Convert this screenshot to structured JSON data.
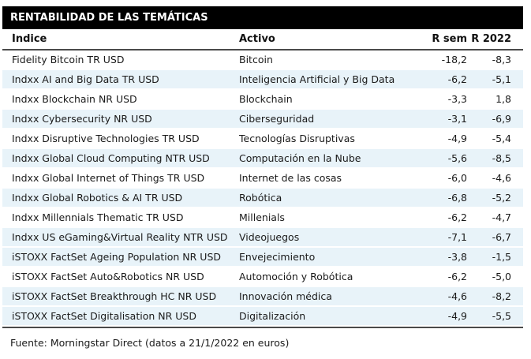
{
  "table": {
    "title": "RENTABILIDAD DE LAS TEMÁTICAS",
    "columns": {
      "indice": "Índice",
      "activo": "Activo",
      "r_sem": "R sem",
      "r_2022": "R 2022"
    },
    "rows": [
      {
        "indice": "Fidelity Bitcoin TR USD",
        "activo": "Bitcoin",
        "r_sem": "-18,2",
        "r_2022": "-8,3",
        "shaded": false
      },
      {
        "indice": "Indxx AI and Big Data TR USD",
        "activo": "Inteligencia Artificial y Big Data",
        "r_sem": "-6,2",
        "r_2022": "-5,1",
        "shaded": true
      },
      {
        "indice": "Indxx Blockchain NR USD",
        "activo": "Blockchain",
        "r_sem": "-3,3",
        "r_2022": "1,8",
        "shaded": false
      },
      {
        "indice": "Indxx Cybersecurity NR USD",
        "activo": "Ciberseguridad",
        "r_sem": "-3,1",
        "r_2022": "-6,9",
        "shaded": true
      },
      {
        "indice": "Indxx Disruptive Technologies TR USD",
        "activo": "Tecnologías Disruptivas",
        "r_sem": "-4,9",
        "r_2022": "-5,4",
        "shaded": false
      },
      {
        "indice": "Indxx Global Cloud Computing NTR USD",
        "activo": "Computación en la Nube",
        "r_sem": "-5,6",
        "r_2022": "-8,5",
        "shaded": true
      },
      {
        "indice": "Indxx Global Internet of Things TR USD",
        "activo": "Internet de las cosas",
        "r_sem": "-6,0",
        "r_2022": "-4,6",
        "shaded": false
      },
      {
        "indice": "Indxx Global Robotics & AI TR USD",
        "activo": "Robótica",
        "r_sem": "-6,8",
        "r_2022": "-5,2",
        "shaded": true
      },
      {
        "indice": "Indxx Millennials Thematic TR USD",
        "activo": "Millenials",
        "r_sem": "-6,2",
        "r_2022": "-4,7",
        "shaded": false
      },
      {
        "indice": "Indxx US eGaming&Virtual Reality NTR USD",
        "activo": "Videojuegos",
        "r_sem": "-7,1",
        "r_2022": "-6,7",
        "shaded": true
      },
      {
        "indice": "iSTOXX FactSet Ageing Population NR USD",
        "activo": "Envejecimiento",
        "r_sem": "-3,8",
        "r_2022": "-1,5",
        "shaded": true
      },
      {
        "indice": "iSTOXX FactSet Auto&Robotics NR USD",
        "activo": "Automoción y Robótica",
        "r_sem": "-6,2",
        "r_2022": "-5,0",
        "shaded": false
      },
      {
        "indice": "iSTOXX FactSet Breakthrough HC NR USD",
        "activo": "Innovación médica",
        "r_sem": "-4,6",
        "r_2022": "-8,2",
        "shaded": true
      },
      {
        "indice": "iSTOXX FactSet Digitalisation NR USD",
        "activo": "Digitalización",
        "r_sem": "-4,9",
        "r_2022": "-5,5",
        "shaded": true
      }
    ],
    "source": "Fuente: Morningstar Direct (datos a 21/1/2022 en euros)"
  },
  "colors": {
    "title_bar_bg": "#000000",
    "title_text": "#ffffff",
    "shaded_row_bg": "#e8f3f9",
    "rule": "#4a4a4a",
    "body_text": "#1a1a1a"
  }
}
